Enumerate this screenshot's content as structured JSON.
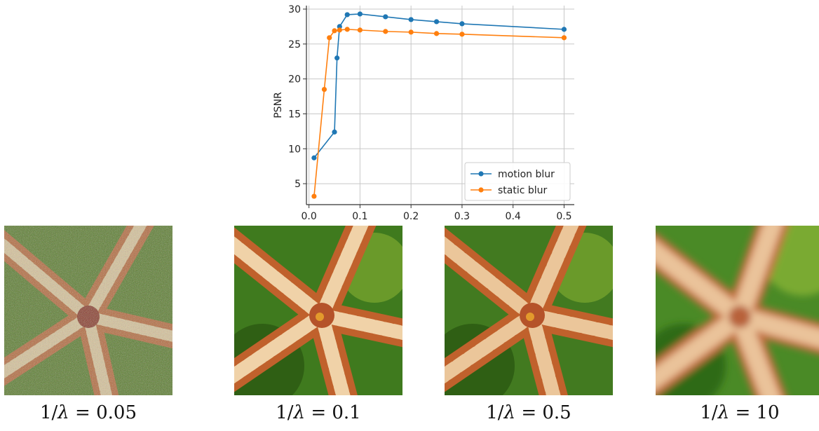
{
  "chart_data": {
    "type": "line",
    "xlabel": "",
    "ylabel": "PSNR",
    "xlim": [
      -0.005,
      0.52
    ],
    "ylim": [
      2,
      30.5
    ],
    "xticks": [
      0.0,
      0.1,
      0.2,
      0.3,
      0.4,
      0.5
    ],
    "xtick_labels": [
      "0.0",
      "0.1",
      "0.2",
      "0.3",
      "0.4",
      "0.5"
    ],
    "yticks": [
      5,
      10,
      15,
      20,
      25,
      30
    ],
    "ytick_labels": [
      "5",
      "10",
      "15",
      "20",
      "25",
      "30"
    ],
    "grid": true,
    "legend_position": "bottom-right",
    "series": [
      {
        "name": "motion blur",
        "color": "#1f77b4",
        "x": [
          0.01,
          0.05,
          0.055,
          0.06,
          0.075,
          0.1,
          0.15,
          0.2,
          0.25,
          0.3,
          0.5
        ],
        "y": [
          8.7,
          12.4,
          23.0,
          27.5,
          29.2,
          29.3,
          28.9,
          28.5,
          28.2,
          27.9,
          27.1
        ]
      },
      {
        "name": "static blur",
        "color": "#ff7f0e",
        "x": [
          0.01,
          0.03,
          0.04,
          0.05,
          0.06,
          0.075,
          0.1,
          0.15,
          0.2,
          0.25,
          0.3,
          0.5
        ],
        "y": [
          3.2,
          18.5,
          25.9,
          26.9,
          27.0,
          27.1,
          27.0,
          26.8,
          26.7,
          26.5,
          26.4,
          25.9
        ]
      }
    ]
  },
  "panels": [
    {
      "icon": "starfish-noisy-image",
      "caption_prefix": "1/",
      "caption_symbol": "λ",
      "caption_value": " = 0.05"
    },
    {
      "icon": "starfish-sharp-image",
      "caption_prefix": "1/",
      "caption_symbol": "λ",
      "caption_value": " = 0.1"
    },
    {
      "icon": "starfish-smooth-image",
      "caption_prefix": "1/",
      "caption_symbol": "λ",
      "caption_value": " = 0.5"
    },
    {
      "icon": "starfish-blurred-image",
      "caption_prefix": "1/",
      "caption_symbol": "λ",
      "caption_value": " = 10"
    }
  ]
}
